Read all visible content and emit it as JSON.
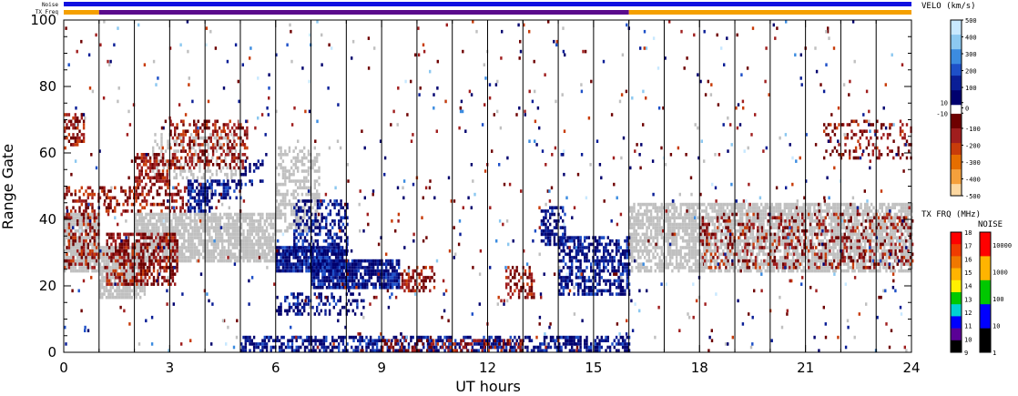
{
  "chart_data": {
    "type": "heatmap",
    "xlabel": "UT hours",
    "ylabel": "Range Gate",
    "xlim": [
      0,
      24
    ],
    "ylim": [
      0,
      100
    ],
    "xticks": [
      0,
      3,
      6,
      9,
      12,
      15,
      18,
      21,
      24
    ],
    "yticks": [
      0,
      20,
      40,
      60,
      80,
      100
    ],
    "scan_boundaries_hours": [
      1,
      2,
      3,
      4,
      5,
      6,
      7,
      8,
      9,
      10,
      11,
      12,
      13,
      14,
      15,
      16,
      17,
      18,
      19,
      20,
      21,
      22,
      23
    ],
    "top_bars": {
      "noise_label": "Noise",
      "txfrq_label": "TX Freq",
      "noise_color": "#1010e0",
      "txfrq_segments": [
        {
          "from": 0,
          "to": 1,
          "color": "#f5a000"
        },
        {
          "from": 1,
          "to": 16,
          "color": "#5a0a8c"
        },
        {
          "from": 16,
          "to": 24,
          "color": "#f5a000"
        }
      ]
    },
    "velocity_scale": {
      "title": "VELO (km/s)",
      "ticks": [
        "500",
        "400",
        "300",
        "200",
        "100",
        "10",
        "0",
        "-10",
        "-100",
        "-200",
        "-300",
        "-400",
        "-500"
      ],
      "colors_top_to_bottom": [
        "#c8e8ff",
        "#8cc8f0",
        "#3c8ce0",
        "#1e50c8",
        "#0a1e96",
        "#00006e",
        "#ffffff",
        "#6e0000",
        "#a01e1e",
        "#c83c0a",
        "#e66e00",
        "#f5a03c",
        "#fcd7a0"
      ],
      "ground_scatter_color": "#c0c0c0"
    },
    "txfreq_scale": {
      "title": "TX FRQ (MHz)",
      "ticks": [
        "18",
        "17",
        "16",
        "15",
        "14",
        "13",
        "12",
        "11",
        "10",
        "9"
      ],
      "colors_top_to_bottom": [
        "#ff0000",
        "#f03c00",
        "#f07800",
        "#ffb400",
        "#fff000",
        "#00c800",
        "#00d2d2",
        "#0000ff",
        "#5a0096",
        "#000000"
      ]
    },
    "noise_scale": {
      "title": "NOISE",
      "ticks": [
        "10000",
        "1000",
        "100",
        "10",
        "1"
      ],
      "colors_top_to_bottom": [
        "#ff0000",
        "#ffb400",
        "#00c800",
        "#0000ff",
        "#000000"
      ]
    },
    "regions": [
      {
        "kind": "ground",
        "x": [
          0,
          1.0
        ],
        "y": [
          24,
          42
        ],
        "density": 0.85
      },
      {
        "kind": "ground",
        "x": [
          1.0,
          2.3
        ],
        "y": [
          16,
          32
        ],
        "density": 0.85
      },
      {
        "kind": "ground",
        "x": [
          2.0,
          6.0
        ],
        "y": [
          27,
          42
        ],
        "density": 0.8
      },
      {
        "kind": "ground",
        "x": [
          6.0,
          7.2
        ],
        "y": [
          36,
          62
        ],
        "density": 0.5
      },
      {
        "kind": "ground",
        "x": [
          16.0,
          24.0
        ],
        "y": [
          24,
          45
        ],
        "density": 0.75
      },
      {
        "kind": "ground",
        "x": [
          2.5,
          5.0
        ],
        "y": [
          52,
          66
        ],
        "density": 0.3
      },
      {
        "kind": "neg",
        "x": [
          0,
          1.0
        ],
        "y": [
          25,
          50
        ],
        "density": 0.35
      },
      {
        "kind": "neg",
        "x": [
          0,
          0.6
        ],
        "y": [
          62,
          72
        ],
        "density": 0.5
      },
      {
        "kind": "neg",
        "x": [
          1.2,
          3.2
        ],
        "y": [
          20,
          36
        ],
        "density": 0.55
      },
      {
        "kind": "neg",
        "x": [
          2.0,
          3.0
        ],
        "y": [
          50,
          60
        ],
        "density": 0.6
      },
      {
        "kind": "neg",
        "x": [
          3.0,
          5.2
        ],
        "y": [
          55,
          70
        ],
        "density": 0.45
      },
      {
        "kind": "neg",
        "x": [
          1.0,
          3.5
        ],
        "y": [
          42,
          50
        ],
        "density": 0.35
      },
      {
        "kind": "neg",
        "x": [
          9.5,
          10.5
        ],
        "y": [
          18,
          26
        ],
        "density": 0.5
      },
      {
        "kind": "neg",
        "x": [
          12.5,
          13.3
        ],
        "y": [
          16,
          26
        ],
        "density": 0.5
      },
      {
        "kind": "neg",
        "x": [
          18.0,
          24.0
        ],
        "y": [
          25,
          42
        ],
        "density": 0.25
      },
      {
        "kind": "neg",
        "x": [
          21.5,
          24.0
        ],
        "y": [
          58,
          70
        ],
        "density": 0.25
      },
      {
        "kind": "pos",
        "x": [
          3.5,
          4.2
        ],
        "y": [
          42,
          52
        ],
        "density": 0.7
      },
      {
        "kind": "pos",
        "x": [
          4.2,
          5.0
        ],
        "y": [
          46,
          52
        ],
        "density": 0.5
      },
      {
        "kind": "pos",
        "x": [
          5.0,
          5.6
        ],
        "y": [
          50,
          58
        ],
        "density": 0.35
      },
      {
        "kind": "pos",
        "x": [
          6.0,
          8.0
        ],
        "y": [
          24,
          32
        ],
        "density": 0.9
      },
      {
        "kind": "pos",
        "x": [
          7.0,
          9.5
        ],
        "y": [
          19,
          28
        ],
        "density": 0.85
      },
      {
        "kind": "pos",
        "x": [
          6.5,
          8.0
        ],
        "y": [
          30,
          46
        ],
        "density": 0.45
      },
      {
        "kind": "pos",
        "x": [
          6.0,
          8.5
        ],
        "y": [
          11,
          18
        ],
        "density": 0.4
      },
      {
        "kind": "pos",
        "x": [
          13.5,
          14.2
        ],
        "y": [
          32,
          44
        ],
        "density": 0.6
      },
      {
        "kind": "pos",
        "x": [
          14.0,
          16.0
        ],
        "y": [
          17,
          35
        ],
        "density": 0.55
      },
      {
        "kind": "pos",
        "x": [
          5.0,
          16.0
        ],
        "y": [
          0,
          5
        ],
        "density": 0.55
      },
      {
        "kind": "neg",
        "x": [
          9.0,
          13.0
        ],
        "y": [
          0,
          4
        ],
        "density": 0.35
      }
    ]
  }
}
